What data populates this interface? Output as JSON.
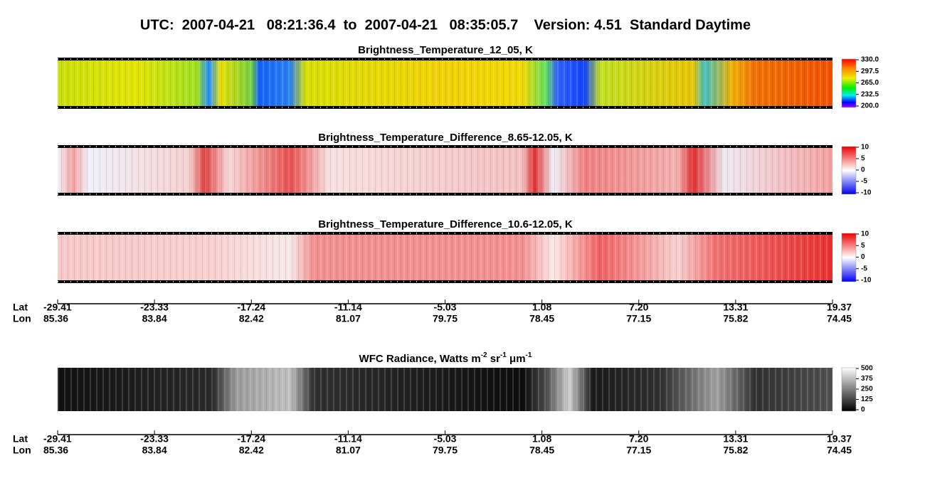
{
  "header": {
    "title": "UTC:  2007-04-21   08:21:36.4  to  2007-04-21   08:35:05.7    Version: 4.51  Standard Daytime"
  },
  "panels": [
    {
      "title": "Brightness_Temperature_12_05, K",
      "colorbar": [
        "330.0",
        "297.5",
        "265.0",
        "232.5",
        "200.0"
      ]
    },
    {
      "title": "Brightness_Temperature_Difference_8.65-12.05, K",
      "colorbar": [
        "10",
        "5",
        "0",
        "-5",
        "-10"
      ]
    },
    {
      "title": "Brightness_Temperature_Difference_10.6-12.05, K",
      "colorbar": [
        "10",
        "5",
        "0",
        "-5",
        "-10"
      ]
    },
    {
      "title_parts": [
        "WFC Radiance, Watts m",
        "-2",
        " sr",
        "-1",
        " μm",
        "-1"
      ],
      "colorbar": [
        "500",
        "375",
        "250",
        "125",
        "0"
      ]
    }
  ],
  "axis": {
    "lat_label": "Lat",
    "lon_label": "Lon",
    "lat": [
      "-29.41",
      "-23.33",
      "-17.24",
      "-11.14",
      "-5.03",
      "1.08",
      "7.20",
      "13.31",
      "19.37"
    ],
    "lon": [
      "85.36",
      "83.84",
      "82.42",
      "81.07",
      "79.75",
      "78.45",
      "77.15",
      "75.82",
      "74.45"
    ]
  }
}
